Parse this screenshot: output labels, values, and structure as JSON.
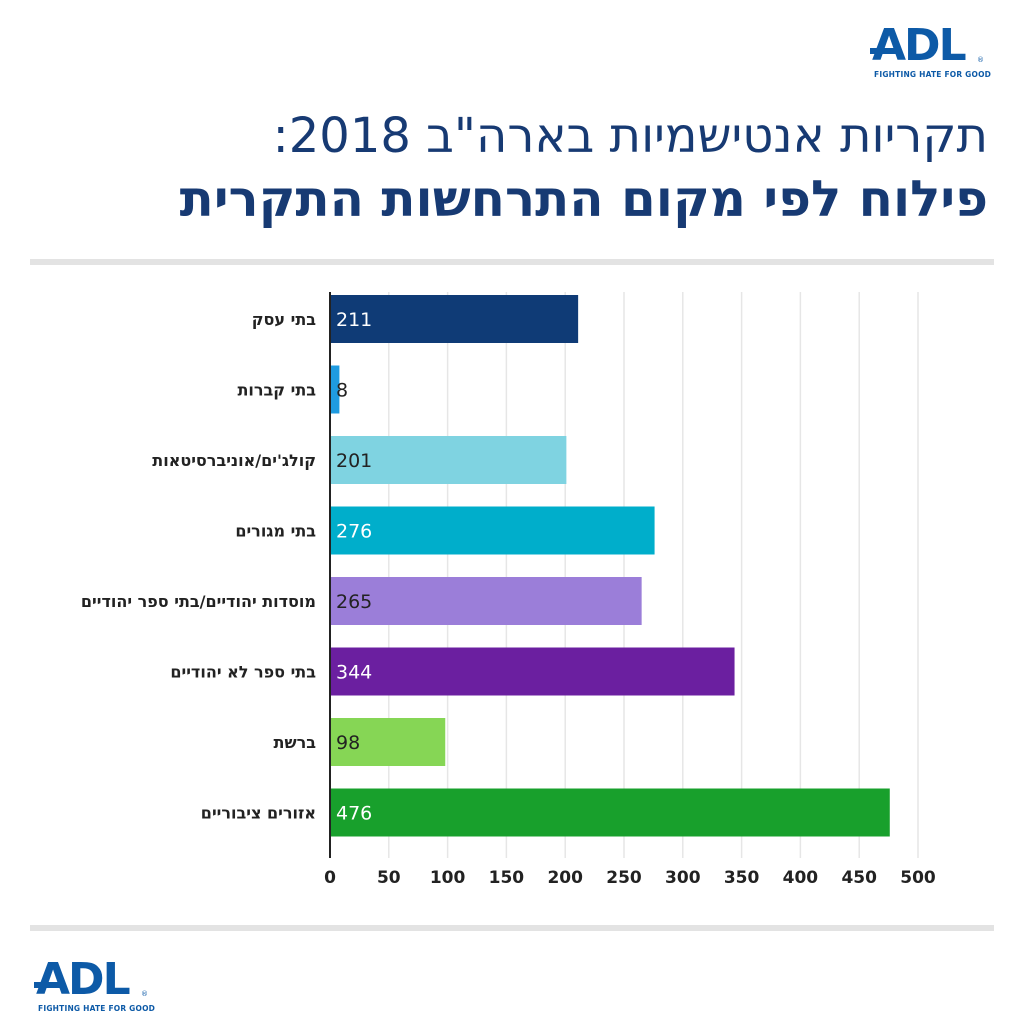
{
  "logo": {
    "text": "ADL",
    "tagline": "FIGHTING HATE FOR GOOD",
    "reg": "®"
  },
  "header": {
    "title_line1": "תקריות אנטישמיות בארה\"ב 2018:",
    "title_line2": "פילוח לפי מקום התרחשות התקרית"
  },
  "chart_data": {
    "type": "bar",
    "orientation": "horizontal",
    "categories": [
      "בתי עסק",
      "בתי קברות",
      "קולג'ים/אוניברסיטאות",
      "בתי מגורים",
      "מוסדות יהודיים/בתי ספר יהודיים",
      "בתי ספר לא יהודיים",
      "ברשת",
      "אזורים ציבוריים"
    ],
    "values": [
      211,
      8,
      201,
      276,
      265,
      344,
      98,
      476
    ],
    "value_labels": [
      "211",
      "8",
      "201",
      "276",
      "265",
      "344",
      "98",
      "476"
    ],
    "bar_colors": [
      "#0f3b76",
      "#1f9be0",
      "#7fd3e1",
      "#00aecb",
      "#9b7ed9",
      "#6b1fa0",
      "#86d655",
      "#18a02c"
    ],
    "label_colors": [
      "#ffffff",
      "#222222",
      "#222222",
      "#ffffff",
      "#222222",
      "#ffffff",
      "#222222",
      "#ffffff"
    ],
    "x_ticks": [
      0,
      50,
      100,
      150,
      200,
      250,
      300,
      350,
      400,
      450,
      500
    ],
    "xlim": [
      0,
      500
    ],
    "grid": true,
    "title": "",
    "xlabel": "",
    "ylabel": ""
  }
}
